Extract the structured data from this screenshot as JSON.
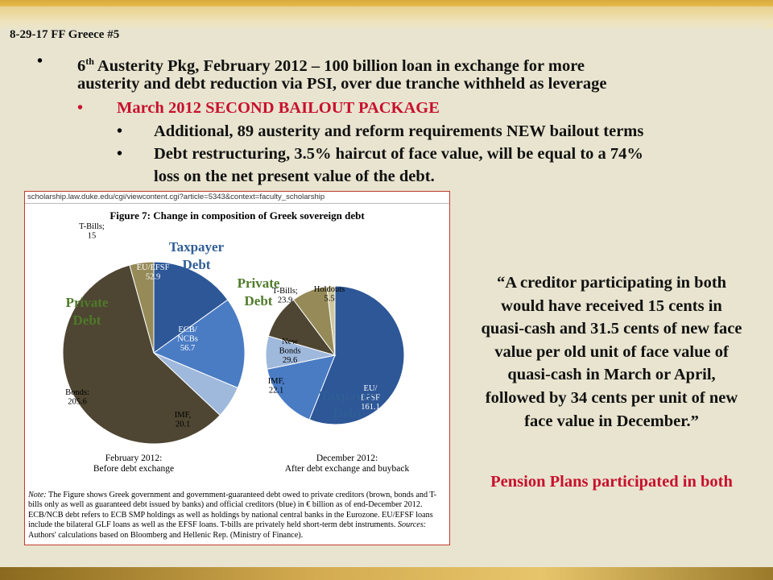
{
  "slide_label": "8-29-17 FF Greece #5",
  "bullets": {
    "b1_line1_pre": "6",
    "b1_line1_sup": "th",
    "b1_line1_post": " Austerity Pkg, February 2012 – 100 billion loan in exchange for more",
    "b1_line2": "austerity and debt reduction via PSI, over due tranche withheld as leverage",
    "b2": "March 2012 SECOND BAILOUT PACKAGE",
    "b3": "Additional, 89 austerity and reform requirements NEW bailout terms",
    "b4_line1": "Debt restructuring, 3.5% haircut of face value, will be equal to a 74%",
    "b4_line2": "loss on the net present value of the debt.",
    "bullet_glyph": "•"
  },
  "figure": {
    "url": "scholarship.law.duke.edu/cgi/viewcontent.cgi?article=5343&context=faculty_scholarship",
    "title": "Figure 7: Change in composition of Greek sovereign debt",
    "caption_left_1": "February 2012:",
    "caption_left_2": "Before debt exchange",
    "caption_right_1": "December 2012:",
    "caption_right_2": "After debt exchange and buyback",
    "note_label": "Note:",
    "note_text": " The Figure shows Greek government and government-guaranteed debt owed to private creditors (brown, bonds and T-bills only as well as guaranteed debt issued by banks) and official creditors (blue) in € billion as of end-December 2012. ECB/NCB debt refers to ECB SMP holdings as well as holdings by national central banks in the Eurozone. EU/EFSF loans include the bilateral GLF loans as well as the EFSF loans. T-bills are privately held short-term debt instruments. ",
    "sources_label": "Sources:",
    "sources_text": " Authors' calculations based on Bloomberg and Hellenic Rep. (Ministry of Finance).",
    "overlay_private_1": "Private",
    "overlay_debt": "Debt",
    "overlay_taxpayer": "Taxpayer",
    "colors": {
      "private_overlay": "#4f7a2a",
      "taxpayer_overlay": "#2f5d96"
    }
  },
  "chart_data": [
    {
      "type": "pie",
      "title": "February 2012:",
      "subtitle": "Before debt exchange",
      "labels": [
        "EU/EFSF",
        "ECB/ NCBs",
        "IMF,",
        "Bonds:",
        "T-Bills;"
      ],
      "values": [
        52.9,
        56.7,
        20.1,
        205.6,
        15
      ],
      "value_labels": [
        "52.9",
        "56.7",
        "20.1",
        "205.6",
        "15"
      ],
      "colors": [
        "#2d5797",
        "#4a7cc4",
        "#9fb9dc",
        "#4e4632",
        "#968a58"
      ]
    },
    {
      "type": "pie",
      "title": "December 2012:",
      "subtitle": "After debt exchange and buyback",
      "labels": [
        "EU/ EFSF",
        "ECB/ NCBs;",
        "IMF,",
        "New Bonds",
        "T-Bills;",
        "Holdouts"
      ],
      "values": [
        161.1,
        45.3,
        22.1,
        29.6,
        23.9,
        5.5
      ],
      "value_labels": [
        "161.1",
        "45.3",
        "22.1",
        "29.6",
        "23.9",
        "5.5"
      ],
      "colors": [
        "#2d5797",
        "#4a7cc4",
        "#9fb9dc",
        "#4e4632",
        "#968a58",
        "#cfc79f"
      ]
    }
  ],
  "quote": {
    "lines": [
      "“A creditor participating in both",
      "would have received 15 cents in",
      "quasi-cash and 31.5 cents of new face",
      "value per old unit of face value of",
      "quasi-cash in March or April,",
      "followed by 34 cents per unit of new",
      "face value in December.”"
    ]
  },
  "pension": "Pension Plans participated in both"
}
